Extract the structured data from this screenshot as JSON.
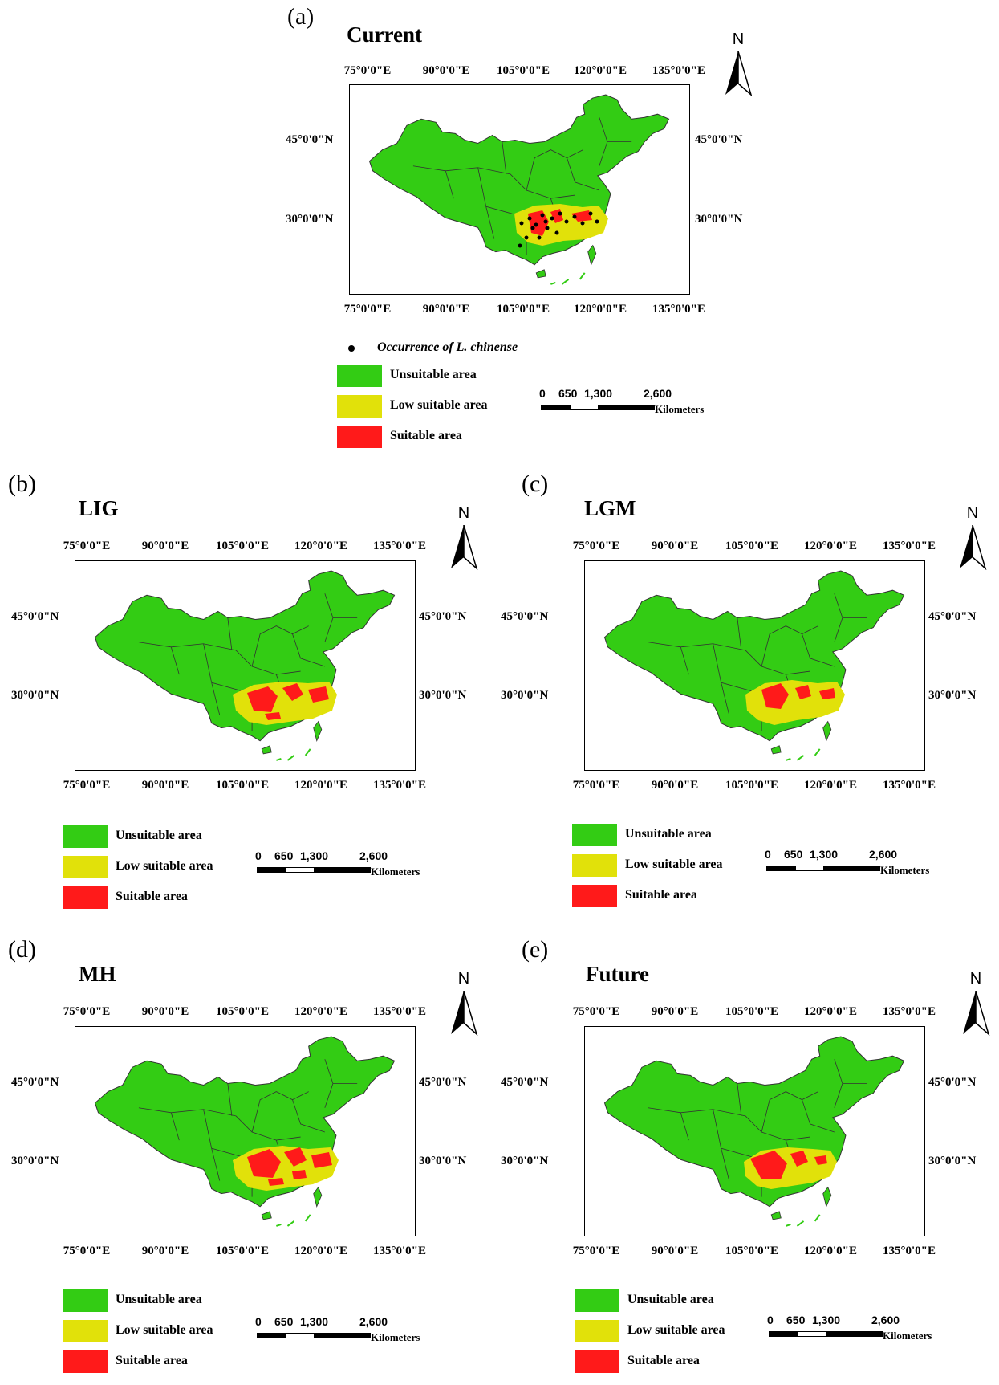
{
  "figure": {
    "occurrence_label": "Occurrence of L. chinense",
    "legend": [
      {
        "label": "Unsuitable area",
        "color": "#33cc14"
      },
      {
        "label": "Low suitable area",
        "color": "#e1e10a"
      },
      {
        "label": "Suitable area",
        "color": "#ff1a1a"
      }
    ],
    "scale": {
      "labels": [
        "0",
        "650",
        "1,300",
        "2,600"
      ],
      "unit": "Kilometers"
    },
    "north_label": "N",
    "lon_ticks": [
      "75°0'0\"E",
      "90°0'0\"E",
      "105°0'0\"E",
      "120°0'0\"E",
      "135°0'0\"E"
    ],
    "lat_ticks": [
      "45°0'0\"N",
      "30°0'0\"N"
    ],
    "colors": {
      "land": "#33cc14",
      "low": "#e1e10a",
      "suitable": "#ff1a1a",
      "border": "#333333"
    }
  },
  "panels": [
    {
      "label": "(a)",
      "title": "Current"
    },
    {
      "label": "(b)",
      "title": "LIG"
    },
    {
      "label": "(c)",
      "title": "LGM"
    },
    {
      "label": "(d)",
      "title": "MH"
    },
    {
      "label": "(e)",
      "title": "Future"
    }
  ]
}
